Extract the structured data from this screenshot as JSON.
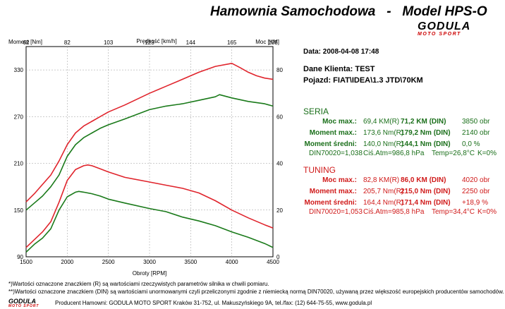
{
  "header": {
    "title": "Hamownia Samochodowa   -   Model HPS-O"
  },
  "logo": {
    "name": "GODULA",
    "sub": "MOTO SPORT"
  },
  "info": {
    "date_label": "Data: 2008-04-08  17:48",
    "client_label": "Dane Klienta: TEST",
    "vehicle_label": "Pojazd: FIAT\\IDEA\\1.3 JTD\\70KM"
  },
  "seria": {
    "title": "SERIA",
    "rows": [
      {
        "label": "Moc max.:",
        "r": "69,4 KM(R)",
        "din": "71,2 KM (DIN)",
        "extra": "3850 obr"
      },
      {
        "label": "Moment max.:",
        "r": "173,6 Nm(R)",
        "din": "179,2 Nm (DIN)",
        "extra": "2140 obr"
      },
      {
        "label": "Moment średni:",
        "r": "140,0 Nm(R)",
        "din": "144,1 Nm (DIN)",
        "extra": "0,0 %"
      }
    ],
    "footer": {
      "din": "DIN70020=1,038",
      "atm": "Ciś.Atm=986,8 hPa",
      "temp": "Temp=26,8°C",
      "k": "K=0%"
    }
  },
  "tuning": {
    "title": "TUNING",
    "rows": [
      {
        "label": "Moc max.:",
        "r": "82,8 KM(R)",
        "din": "86,0 KM (DIN)",
        "extra": "4020 obr"
      },
      {
        "label": "Moment max.:",
        "r": "205,7 Nm(R)",
        "din": "215,0 Nm (DIN)",
        "extra": "2250 obr"
      },
      {
        "label": "Moment średni:",
        "r": "164,4 Nm(R)",
        "din": "171,4 Nm (DIN)",
        "extra": "+18,9 %"
      }
    ],
    "footer": {
      "din": "DIN70020=1,053",
      "atm": "Ciś.Atm=985,8 hPa",
      "temp": "Temp=34,4°C",
      "k": "K=0%"
    }
  },
  "footnotes": {
    "line1": "*)Wartości oznaczone znaczkiem (R) są wartościami rzeczywistych parametrów silnika w chwili pomiaru.",
    "line2": "**)Wartości oznaczone znaczkiem (DIN) są wartościami unormowanymi czyli przeliczonymi zgodnie z niemiecką normą DIN70020, używaną przez większość europejskich producentów samochodów.",
    "producer": "Producent Hamowni: GODULA MOTO SPORT Kraków 31-752, ul. Makuszyńskiego 9A, tel./fax: (12) 644-75-55, www.godula.pl"
  },
  "colors": {
    "seria": "#1a7a1a",
    "tuning": "#e0242c"
  },
  "chart_data": {
    "type": "line",
    "xlabel": "Obroty [RPM]",
    "x_ticks": [
      "1500",
      "2000",
      "2500",
      "3000",
      "3500",
      "4000",
      "4500"
    ],
    "xlim": [
      1500,
      4500
    ],
    "top_label": "Prędkość [km/h]",
    "top_ticks": [
      "62",
      "82",
      "103",
      "123",
      "144",
      "165",
      "185"
    ],
    "left_label": "Moment [Nm]",
    "left_ticks": [
      "90",
      "150",
      "210",
      "270",
      "330"
    ],
    "left_lim": [
      90,
      360
    ],
    "right_label": "Moc [KM]",
    "right_ticks": [
      "0",
      "20",
      "40",
      "60",
      "80"
    ],
    "right_lim": [
      0,
      90
    ],
    "grid": true,
    "series": [
      {
        "name": "TUNING",
        "axis": "right",
        "color": "#e0242c",
        "x": [
          1500,
          1600,
          1700,
          1800,
          1900,
          2000,
          2100,
          2200,
          2300,
          2400,
          2500,
          2700,
          3000,
          3200,
          3400,
          3600,
          3800,
          4000,
          4100,
          4200,
          4300,
          4400,
          4500
        ],
        "values": [
          23.5,
          27,
          31,
          35,
          41,
          48,
          53,
          56,
          58,
          60,
          62,
          65,
          70,
          73,
          76,
          79,
          81.5,
          82.8,
          81,
          79,
          77.5,
          76.5,
          76
        ]
      },
      {
        "name": "SERIA",
        "axis": "right",
        "color": "#1a7a1a",
        "x": [
          1500,
          1600,
          1700,
          1800,
          1900,
          2000,
          2100,
          2200,
          2300,
          2400,
          2500,
          2700,
          3000,
          3200,
          3400,
          3600,
          3800,
          3850,
          4000,
          4200,
          4400,
          4500
        ],
        "values": [
          20,
          23,
          26,
          30,
          35,
          43,
          48,
          51,
          53,
          55,
          56.5,
          59,
          63,
          64.5,
          65.5,
          67,
          68.5,
          69.4,
          68,
          66.5,
          65.5,
          64.5
        ]
      },
      {
        "name": "TUNING",
        "axis": "left",
        "color": "#e0242c",
        "x": [
          1500,
          1600,
          1700,
          1800,
          1900,
          2000,
          2100,
          2200,
          2250,
          2300,
          2400,
          2500,
          2700,
          3000,
          3200,
          3400,
          3600,
          3800,
          4000,
          4200,
          4400,
          4500
        ],
        "values": [
          102,
          112,
          122,
          135,
          160,
          188,
          202,
          207,
          208,
          207,
          203,
          199,
          192,
          186,
          182,
          178,
          172,
          162,
          150,
          140,
          131,
          127
        ]
      },
      {
        "name": "SERIA",
        "axis": "left",
        "color": "#1a7a1a",
        "x": [
          1500,
          1600,
          1700,
          1800,
          1900,
          2000,
          2100,
          2140,
          2200,
          2300,
          2400,
          2500,
          2700,
          3000,
          3200,
          3400,
          3600,
          3800,
          4000,
          4200,
          4400,
          4500
        ],
        "values": [
          96,
          106,
          114,
          126,
          150,
          167,
          173,
          174,
          173,
          171,
          168,
          164,
          159,
          152,
          148,
          141,
          136,
          130,
          122,
          115,
          107,
          102
        ]
      }
    ]
  }
}
